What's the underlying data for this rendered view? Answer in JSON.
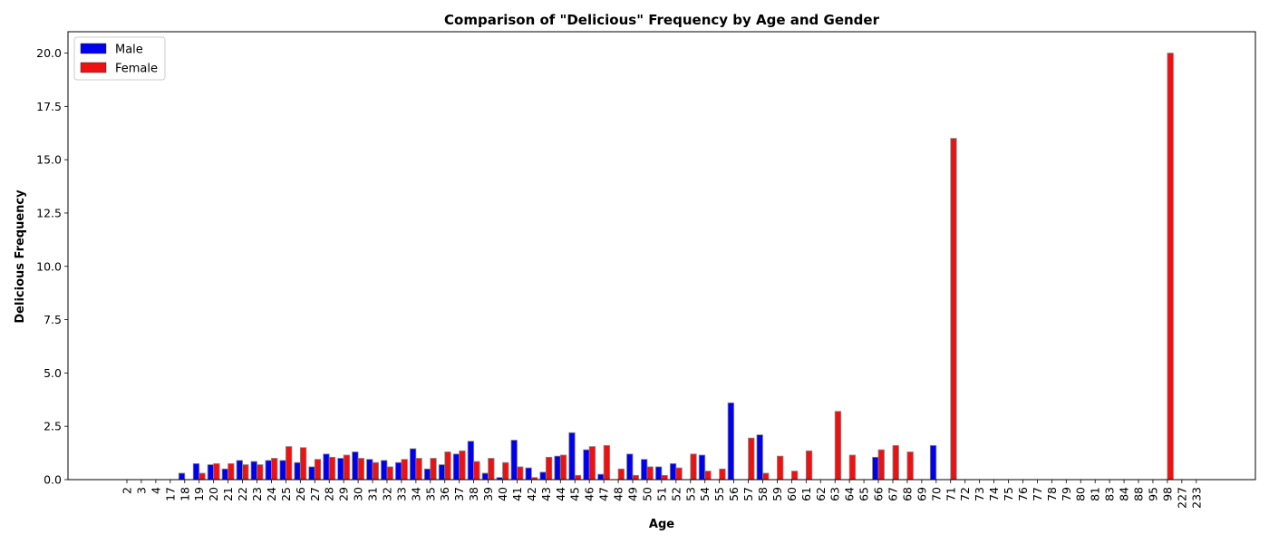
{
  "chart_data": {
    "type": "bar",
    "title": "Comparison of \"Delicious\" Frequency by Age and Gender",
    "xlabel": "Age",
    "ylabel": "Delicious Frequency",
    "ylim": [
      0,
      21
    ],
    "yticks": [
      "0.0",
      "2.5",
      "5.0",
      "7.5",
      "10.0",
      "12.5",
      "15.0",
      "17.5",
      "20.0"
    ],
    "grid": false,
    "legend_position": "top-left",
    "categories": [
      "2",
      "3",
      "4",
      "17",
      "18",
      "19",
      "20",
      "21",
      "22",
      "23",
      "24",
      "25",
      "26",
      "27",
      "28",
      "29",
      "30",
      "31",
      "32",
      "33",
      "34",
      "35",
      "36",
      "37",
      "38",
      "39",
      "40",
      "41",
      "42",
      "43",
      "44",
      "45",
      "46",
      "47",
      "48",
      "49",
      "50",
      "51",
      "52",
      "53",
      "54",
      "55",
      "56",
      "57",
      "58",
      "59",
      "60",
      "61",
      "62",
      "63",
      "64",
      "65",
      "66",
      "67",
      "68",
      "69",
      "70",
      "71",
      "72",
      "73",
      "74",
      "75",
      "76",
      "77",
      "78",
      "79",
      "80",
      "81",
      "83",
      "84",
      "88",
      "95",
      "98",
      "227",
      "233"
    ],
    "series": [
      {
        "name": "Male",
        "color": "#0000ee",
        "values": [
          0,
          0,
          0,
          0,
          0.3,
          0.75,
          0.7,
          0.5,
          0.9,
          0.85,
          0.9,
          0.9,
          0.8,
          0.6,
          1.2,
          1.0,
          1.3,
          0.95,
          0.9,
          0.8,
          1.45,
          0.5,
          0.7,
          1.2,
          1.8,
          0.3,
          0.1,
          1.85,
          0.55,
          0.35,
          1.1,
          2.2,
          1.4,
          0.25,
          0,
          1.2,
          0.95,
          0.6,
          0.75,
          0,
          1.15,
          0,
          3.6,
          0,
          2.1,
          0,
          0,
          0,
          0,
          0,
          0,
          0,
          1.05,
          0,
          0,
          0,
          1.6,
          0,
          0,
          0,
          0,
          0,
          0,
          0,
          0,
          0,
          0,
          0,
          0,
          0,
          0,
          0,
          0,
          0,
          0
        ]
      },
      {
        "name": "Female",
        "color": "#ee1111",
        "values": [
          0,
          0,
          0,
          0,
          0,
          0.3,
          0.75,
          0.75,
          0.7,
          0.7,
          1.0,
          1.55,
          1.5,
          0.95,
          1.05,
          1.15,
          1.0,
          0.8,
          0.6,
          0.95,
          1.0,
          1.0,
          1.3,
          1.35,
          0.85,
          1.0,
          0.8,
          0.6,
          0.1,
          1.05,
          1.15,
          0.2,
          1.55,
          1.6,
          0.5,
          0.2,
          0.6,
          0.2,
          0.55,
          1.2,
          0.4,
          0.5,
          0,
          1.95,
          0.3,
          1.1,
          0.4,
          1.35,
          0,
          3.2,
          1.15,
          0,
          1.4,
          1.6,
          1.3,
          0,
          0,
          16.0,
          0,
          0,
          0,
          0,
          0,
          0,
          0,
          0,
          0,
          0,
          0,
          0,
          0,
          0,
          20.0,
          0,
          0
        ]
      }
    ]
  }
}
